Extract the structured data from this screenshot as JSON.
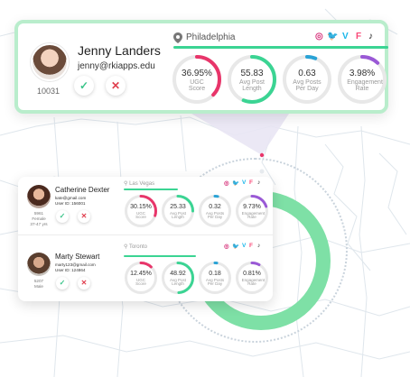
{
  "colors": {
    "accent_green": "#3bd493",
    "pink": "#e8356a",
    "blue": "#2aa3d6",
    "purple": "#9a59d6",
    "card_border": "#b9edcc"
  },
  "social_icons": [
    "instagram-icon",
    "twitter-icon",
    "vimeo-icon",
    "foursquare-icon",
    "tiktok-icon"
  ],
  "social_glyphs": {
    "instagram": "◎",
    "twitter": "🐦",
    "vimeo": "V",
    "foursquare": "F",
    "tiktok": "♪"
  },
  "main_card": {
    "name": "Jenny Landers",
    "email": "jenny@rkiapps.edu",
    "id": "10031",
    "location": "Philadelphia",
    "metrics": [
      {
        "value": "36.95%",
        "label": "UGC Score",
        "color": "#e8356a",
        "fraction": 0.37
      },
      {
        "value": "55.83",
        "label": "Avg Post Length",
        "color": "#3bd493",
        "fraction": 0.56
      },
      {
        "value": "0.63",
        "label": "Avg Posts Per Day",
        "color": "#2aa3d6",
        "fraction": 0.06
      },
      {
        "value": "3.98%",
        "label": "Engagement Rate",
        "color": "#9a59d6",
        "fraction": 0.12
      }
    ]
  },
  "list_card": {
    "people": [
      {
        "name": "Catherine Dexter",
        "email": "kate@gmail.com",
        "user_id": "User ID: 156001",
        "id": "5961",
        "gender": "Female",
        "age": "37-47 yrs",
        "location": "Las Vegas",
        "metrics": [
          {
            "value": "30.15%",
            "label": "UGC Score",
            "color": "#e8356a",
            "fraction": 0.3
          },
          {
            "value": "25.33",
            "label": "Avg Post Length",
            "color": "#3bd493",
            "fraction": 0.25
          },
          {
            "value": "0.32",
            "label": "Avg Posts Per Day",
            "color": "#2aa3d6",
            "fraction": 0.03
          },
          {
            "value": "9.73%",
            "label": "Engagement Rate",
            "color": "#9a59d6",
            "fraction": 0.2
          }
        ]
      },
      {
        "name": "Marty Stewart",
        "email": "marty123@gmail.com",
        "user_id": "User ID: 124864",
        "id": "5207",
        "gender": "Male",
        "age": "",
        "location": "Toronto",
        "metrics": [
          {
            "value": "12.45%",
            "label": "UGC Score",
            "color": "#e8356a",
            "fraction": 0.12
          },
          {
            "value": "48.92",
            "label": "Avg Post Length",
            "color": "#3bd493",
            "fraction": 0.49
          },
          {
            "value": "0.18",
            "label": "Avg Posts Per Day",
            "color": "#2aa3d6",
            "fraction": 0.02
          },
          {
            "value": "0.81%",
            "label": "Engagement Rate",
            "color": "#9a59d6",
            "fraction": 0.08
          }
        ]
      }
    ]
  }
}
